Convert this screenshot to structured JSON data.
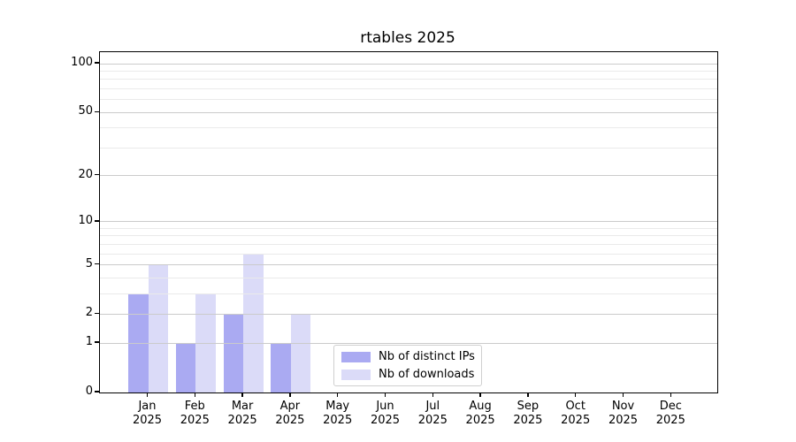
{
  "chart_data": {
    "type": "bar",
    "title": "rtables 2025",
    "categories": [
      "Jan",
      "Feb",
      "Mar",
      "Apr",
      "May",
      "Jun",
      "Jul",
      "Aug",
      "Sep",
      "Oct",
      "Nov",
      "Dec"
    ],
    "year_label": "2025",
    "series": [
      {
        "name": "Nb of distinct IPs",
        "color": "#aaaaf2",
        "values": [
          3,
          1,
          2,
          1,
          0,
          0,
          0,
          0,
          0,
          0,
          0,
          0
        ]
      },
      {
        "name": "Nb of downloads",
        "color": "#dbdbf8",
        "values": [
          5,
          3,
          6,
          2,
          0,
          0,
          0,
          0,
          0,
          0,
          0,
          0
        ]
      }
    ],
    "xlabel": "",
    "ylabel": "",
    "yscale": "log1p",
    "ylim": [
      0,
      118
    ],
    "yticks": [
      0,
      1,
      2,
      5,
      10,
      20,
      50,
      100
    ],
    "minor_yticks": [
      3,
      4,
      6,
      7,
      8,
      9,
      30,
      40,
      60,
      70,
      80,
      90
    ],
    "grid": "on",
    "grid_over_bars": true,
    "legend_position": "lower center",
    "colors": {
      "major_grid": "#cbcbcb",
      "minor_grid": "#eaeaea",
      "spine": "#000000",
      "text": "#000000",
      "background": "#ffffff"
    }
  }
}
